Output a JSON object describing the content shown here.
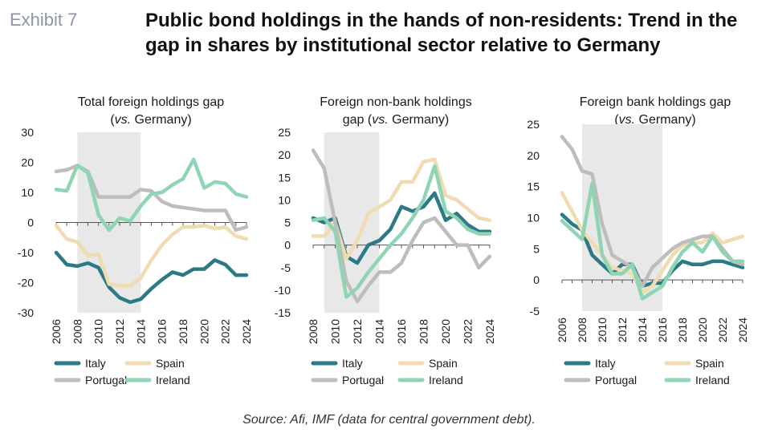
{
  "exhibit_label": "Exhibit 7",
  "title": "Public bond holdings in the hands of non-residents: Trend in the gap in shares by institutional sector relative to Germany",
  "source": "Source: Afi, IMF (data for central government debt).",
  "colors": {
    "Italy": "#2b7a86",
    "Spain": "#efdcb0",
    "Portugal": "#bdbdbd",
    "Ireland": "#8fd4b3",
    "shade": "#e8e8e8"
  },
  "chart_data": [
    {
      "type": "line",
      "title_line1": "Total foreign holdings gap",
      "title_line2_pre": "(",
      "title_line2_italic": "vs.",
      "title_line2_post": " Germany)",
      "ylim": [
        -30,
        30
      ],
      "yticks": [
        -30,
        -20,
        -10,
        0,
        10,
        20,
        30
      ],
      "xlim": [
        2006,
        2024
      ],
      "xticks": [
        "2006",
        "2008",
        "2010",
        "2012",
        "2014",
        "2016",
        "2018",
        "2020",
        "2022",
        "2024"
      ],
      "shaded_range": [
        2008,
        2014
      ],
      "grid": false,
      "legend": [
        "Italy",
        "Spain",
        "Portugal",
        "Ireland"
      ],
      "x": [
        2006,
        2007,
        2008,
        2009,
        2010,
        2011,
        2012,
        2013,
        2014,
        2015,
        2016,
        2017,
        2018,
        2019,
        2020,
        2021,
        2022,
        2023,
        2024
      ],
      "series": [
        {
          "name": "Italy",
          "values": [
            -10,
            -14,
            -14.5,
            -13.5,
            -15,
            -21.5,
            -25,
            -26.5,
            -25.5,
            -22,
            -19,
            -16.5,
            -17.5,
            -15.5,
            -15.5,
            -12.5,
            -14,
            -17.5,
            -17.5
          ]
        },
        {
          "name": "Spain",
          "values": [
            -1,
            -5.5,
            -6.5,
            -11,
            -10.5,
            -20.5,
            -21,
            -21,
            -18.5,
            -12.5,
            -7.5,
            -4,
            -1.5,
            -1.5,
            -1,
            -2,
            -1.5,
            -4.5,
            -5.5
          ]
        },
        {
          "name": "Portugal",
          "values": [
            17,
            17.5,
            19,
            17,
            8.5,
            8.5,
            8.5,
            8.5,
            11,
            10.5,
            7,
            5.5,
            5,
            4.5,
            4,
            4,
            4,
            -2.5,
            -1.5
          ]
        },
        {
          "name": "Ireland",
          "values": [
            11,
            10.5,
            19,
            16.5,
            2.5,
            -2.5,
            1.5,
            0.5,
            5.5,
            9.5,
            10,
            12.5,
            14.5,
            21,
            11.5,
            13.5,
            13,
            9.5,
            8.5
          ]
        }
      ]
    },
    {
      "type": "line",
      "title_line1": "Foreign non-bank holdings",
      "title_line2_pre": "gap (",
      "title_line2_italic": "vs.",
      "title_line2_post": " Germany)",
      "ylim": [
        -15,
        25
      ],
      "yticks": [
        -15,
        -10,
        -5,
        0,
        5,
        10,
        15,
        20,
        25
      ],
      "xlim": [
        2008,
        2024
      ],
      "xticks": [
        "2008",
        "2010",
        "2012",
        "2014",
        "2016",
        "2018",
        "2020",
        "2022",
        "2024"
      ],
      "shaded_range": [
        2009,
        2014
      ],
      "grid": false,
      "legend": [
        "Italy",
        "Spain",
        "Portugal",
        "Ireland"
      ],
      "x": [
        2008,
        2009,
        2010,
        2011,
        2012,
        2013,
        2014,
        2015,
        2016,
        2017,
        2018,
        2019,
        2020,
        2021,
        2022,
        2023,
        2024
      ],
      "series": [
        {
          "name": "Italy",
          "values": [
            6,
            5,
            6,
            -2.5,
            -4,
            0,
            1,
            3.5,
            8.5,
            7.5,
            8.5,
            11.5,
            5.5,
            7,
            4.5,
            3,
            3
          ]
        },
        {
          "name": "Spain",
          "values": [
            2,
            2,
            5,
            -3,
            1,
            7,
            8.5,
            10,
            14,
            14,
            18.5,
            19,
            11,
            10,
            8,
            6,
            5.5
          ]
        },
        {
          "name": "Portugal",
          "values": [
            21,
            17,
            5,
            -8,
            -12.5,
            -9,
            -6,
            -6,
            -4,
            1,
            5,
            6,
            3,
            0,
            0,
            -5,
            -2.5
          ]
        },
        {
          "name": "Ireland",
          "values": [
            5.5,
            6,
            3,
            -11.5,
            -9.5,
            -6,
            -3,
            0,
            2.5,
            6,
            10,
            17.5,
            7.5,
            6,
            3.5,
            2.5,
            2.5
          ]
        }
      ]
    },
    {
      "type": "line",
      "title_line1": "Foreign bank holdings gap",
      "title_line2_pre": "(",
      "title_line2_italic": "vs.",
      "title_line2_post": " Germany)",
      "ylim": [
        -5,
        25
      ],
      "yticks": [
        -5,
        0,
        5,
        10,
        15,
        20,
        25
      ],
      "xlim": [
        2006,
        2024
      ],
      "xticks": [
        "2006",
        "2008",
        "2010",
        "2012",
        "2014",
        "2016",
        "2018",
        "2020",
        "2022",
        "2024"
      ],
      "shaded_range": [
        2008,
        2016
      ],
      "grid": false,
      "legend": [
        "Italy",
        "Spain",
        "Portugal",
        "Ireland"
      ],
      "x": [
        2006,
        2007,
        2008,
        2009,
        2010,
        2011,
        2012,
        2013,
        2014,
        2015,
        2016,
        2017,
        2018,
        2019,
        2020,
        2021,
        2022,
        2023,
        2024
      ],
      "series": [
        {
          "name": "Italy",
          "values": [
            10.5,
            9,
            8,
            4,
            2.5,
            1,
            2.5,
            2.5,
            -1,
            -0.5,
            -0.5,
            1.5,
            3,
            2.5,
            2.5,
            3,
            3,
            2.5,
            2
          ]
        },
        {
          "name": "Spain",
          "values": [
            14,
            11,
            8,
            6,
            4,
            2,
            1.5,
            1,
            -2,
            -1,
            1.5,
            4,
            5.5,
            6,
            6,
            7.5,
            6,
            6.5,
            7
          ]
        },
        {
          "name": "Portugal",
          "values": [
            23,
            21,
            17.5,
            17,
            9,
            4,
            3,
            2,
            -1,
            2,
            3.5,
            5,
            6,
            6.5,
            7,
            7,
            5,
            3,
            2.5
          ]
        },
        {
          "name": "Ireland",
          "values": [
            9.5,
            8,
            6.5,
            15.5,
            4,
            1,
            1,
            2.5,
            -3,
            -2,
            -1,
            2,
            4.5,
            6,
            4.5,
            7,
            4.5,
            3,
            3
          ]
        }
      ]
    }
  ]
}
